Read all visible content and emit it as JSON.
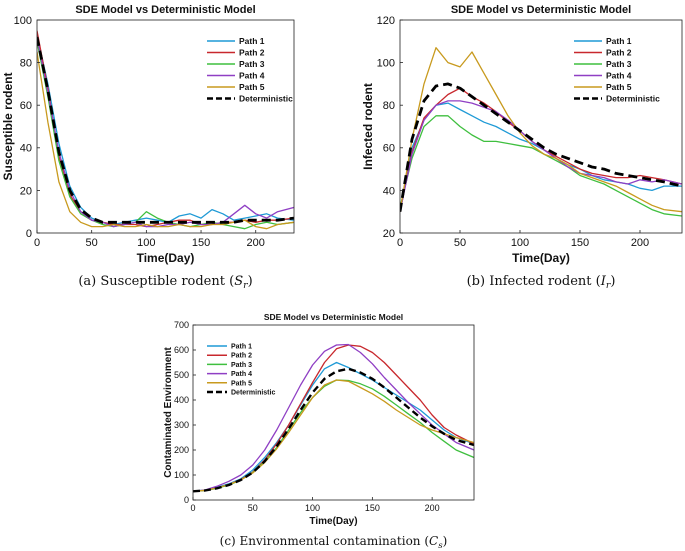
{
  "chart_data": [
    {
      "id": "a",
      "type": "line",
      "title": "SDE Model vs Deterministic Model",
      "xlabel": "Time(Day)",
      "ylabel": "Susceptible rodent",
      "caption_main": "(a) Susceptible rodent (",
      "caption_sym": "S",
      "caption_sub": "r",
      "caption_end": ")",
      "xlim": [
        0,
        235
      ],
      "ylim": [
        0,
        100
      ],
      "xticks": [
        0,
        50,
        100,
        150,
        200
      ],
      "yticks": [
        0,
        20,
        40,
        60,
        80,
        100
      ],
      "legend_position": "top-right",
      "x": [
        0,
        10,
        20,
        30,
        40,
        50,
        60,
        70,
        80,
        90,
        100,
        110,
        120,
        130,
        140,
        150,
        160,
        170,
        180,
        190,
        200,
        210,
        220,
        235
      ],
      "series": [
        {
          "name": "Path 1",
          "color": "#1f9ad6",
          "values": [
            93,
            70,
            42,
            22,
            12,
            7,
            5,
            4,
            5,
            6,
            7,
            6,
            5,
            8,
            9,
            7,
            11,
            9,
            6,
            7,
            8,
            9,
            7,
            6
          ]
        },
        {
          "name": "Path 2",
          "color": "#c8282d",
          "values": [
            95,
            68,
            36,
            18,
            10,
            6,
            5,
            4,
            4,
            4,
            3,
            4,
            5,
            6,
            6,
            4,
            4,
            5,
            5,
            6,
            5,
            6,
            6,
            7
          ]
        },
        {
          "name": "Path 3",
          "color": "#3fbf3f",
          "values": [
            90,
            64,
            34,
            17,
            9,
            6,
            4,
            3,
            4,
            5,
            10,
            7,
            5,
            4,
            3,
            4,
            5,
            4,
            3,
            2,
            4,
            5,
            4,
            5
          ]
        },
        {
          "name": "Path 4",
          "color": "#8f3fc4",
          "values": [
            92,
            66,
            38,
            20,
            10,
            6,
            5,
            3,
            4,
            5,
            3,
            3,
            4,
            4,
            5,
            4,
            4,
            5,
            9,
            13,
            9,
            7,
            10,
            12
          ]
        },
        {
          "name": "Path 5",
          "color": "#c89a1e",
          "values": [
            85,
            52,
            24,
            10,
            5,
            3,
            3,
            4,
            3,
            3,
            4,
            3,
            3,
            4,
            3,
            3,
            4,
            4,
            5,
            6,
            3,
            2,
            4,
            5
          ]
        },
        {
          "name": "Deterministic",
          "color": "#000000",
          "dashed": true,
          "values": [
            92,
            67,
            38,
            20,
            11,
            7,
            5,
            5,
            5,
            5,
            5,
            5,
            5,
            5,
            5,
            5,
            5,
            5,
            5,
            6,
            6,
            6,
            6,
            7
          ]
        }
      ]
    },
    {
      "id": "b",
      "type": "line",
      "title": "SDE Model vs Deterministic Model",
      "xlabel": "Time(Day)",
      "ylabel": "Infected rodent",
      "caption_main": "(b) Infected rodent (",
      "caption_sym": "I",
      "caption_sub": "r",
      "caption_end": ")",
      "xlim": [
        0,
        235
      ],
      "ylim": [
        20,
        120
      ],
      "xticks": [
        0,
        50,
        100,
        150,
        200
      ],
      "yticks": [
        20,
        40,
        60,
        80,
        100,
        120
      ],
      "legend_position": "top-right",
      "x": [
        0,
        10,
        20,
        30,
        40,
        50,
        60,
        70,
        80,
        90,
        100,
        110,
        120,
        130,
        140,
        150,
        160,
        170,
        180,
        190,
        200,
        210,
        220,
        235
      ],
      "series": [
        {
          "name": "Path 1",
          "color": "#1f9ad6",
          "values": [
            30,
            60,
            73,
            80,
            81,
            78,
            75,
            72,
            70,
            67,
            64,
            62,
            59,
            55,
            52,
            50,
            47,
            45,
            44,
            43,
            41,
            40,
            42,
            42
          ]
        },
        {
          "name": "Path 2",
          "color": "#c8282d",
          "values": [
            30,
            58,
            74,
            80,
            85,
            88,
            84,
            81,
            77,
            72,
            68,
            63,
            59,
            56,
            53,
            50,
            48,
            47,
            46,
            46,
            47,
            46,
            45,
            43
          ]
        },
        {
          "name": "Path 3",
          "color": "#3fbf3f",
          "values": [
            32,
            55,
            70,
            75,
            75,
            70,
            66,
            63,
            63,
            62,
            61,
            60,
            57,
            54,
            51,
            47,
            45,
            43,
            40,
            37,
            34,
            31,
            29,
            28
          ]
        },
        {
          "name": "Path 4",
          "color": "#8f3fc4",
          "values": [
            30,
            57,
            73,
            80,
            82,
            82,
            81,
            79,
            77,
            73,
            68,
            63,
            59,
            55,
            51,
            48,
            47,
            46,
            44,
            43,
            45,
            44,
            45,
            43
          ]
        },
        {
          "name": "Path 5",
          "color": "#c89a1e",
          "values": [
            30,
            64,
            90,
            107,
            100,
            98,
            105,
            95,
            85,
            75,
            67,
            61,
            57,
            55,
            52,
            48,
            46,
            44,
            42,
            39,
            36,
            33,
            31,
            30
          ]
        },
        {
          "name": "Deterministic",
          "color": "#000000",
          "dashed": true,
          "values": [
            30,
            64,
            82,
            89,
            90,
            88,
            84,
            80,
            76,
            72,
            68,
            64,
            60,
            57,
            55,
            53,
            51,
            50,
            48,
            47,
            46,
            45,
            44,
            42
          ]
        }
      ]
    },
    {
      "id": "c",
      "type": "line",
      "title": "SDE Model vs Deterministic Model",
      "xlabel": "Time(Day)",
      "ylabel": "Contaminated Environment",
      "caption_main": "(c) Environmental contamination (",
      "caption_sym": "C",
      "caption_sub": "s",
      "caption_end": ")",
      "xlim": [
        0,
        235
      ],
      "ylim": [
        0,
        700
      ],
      "xticks": [
        0,
        50,
        100,
        150,
        200
      ],
      "yticks": [
        0,
        100,
        200,
        300,
        400,
        500,
        600,
        700
      ],
      "legend_position": "top-left",
      "x": [
        0,
        10,
        20,
        30,
        40,
        50,
        60,
        70,
        80,
        90,
        100,
        110,
        120,
        130,
        140,
        150,
        160,
        170,
        180,
        190,
        200,
        210,
        220,
        235
      ],
      "series": [
        {
          "name": "Path 1",
          "color": "#1f9ad6",
          "values": [
            35,
            40,
            50,
            65,
            85,
            120,
            170,
            230,
            300,
            380,
            460,
            525,
            550,
            530,
            505,
            480,
            450,
            420,
            390,
            360,
            320,
            280,
            250,
            225
          ]
        },
        {
          "name": "Path 2",
          "color": "#c8282d",
          "values": [
            35,
            38,
            48,
            62,
            82,
            112,
            160,
            225,
            300,
            385,
            470,
            550,
            605,
            620,
            615,
            590,
            550,
            500,
            450,
            400,
            340,
            290,
            260,
            225
          ]
        },
        {
          "name": "Path 3",
          "color": "#3fbf3f",
          "values": [
            35,
            38,
            47,
            60,
            80,
            110,
            155,
            210,
            280,
            350,
            410,
            455,
            480,
            478,
            465,
            445,
            415,
            380,
            345,
            310,
            270,
            235,
            200,
            170
          ]
        },
        {
          "name": "Path 4",
          "color": "#8f3fc4",
          "values": [
            35,
            40,
            55,
            75,
            100,
            140,
            200,
            280,
            370,
            460,
            540,
            595,
            620,
            622,
            590,
            545,
            490,
            440,
            390,
            345,
            300,
            265,
            230,
            200
          ]
        },
        {
          "name": "Path 5",
          "color": "#c89a1e",
          "values": [
            35,
            39,
            48,
            62,
            80,
            108,
            150,
            205,
            270,
            340,
            410,
            460,
            480,
            475,
            450,
            425,
            395,
            360,
            330,
            300,
            280,
            265,
            250,
            230
          ]
        },
        {
          "name": "Deterministic",
          "color": "#000000",
          "dashed": true,
          "values": [
            35,
            38,
            47,
            60,
            80,
            110,
            155,
            215,
            285,
            360,
            430,
            485,
            515,
            525,
            510,
            485,
            450,
            410,
            370,
            330,
            295,
            265,
            240,
            220
          ]
        }
      ]
    }
  ]
}
